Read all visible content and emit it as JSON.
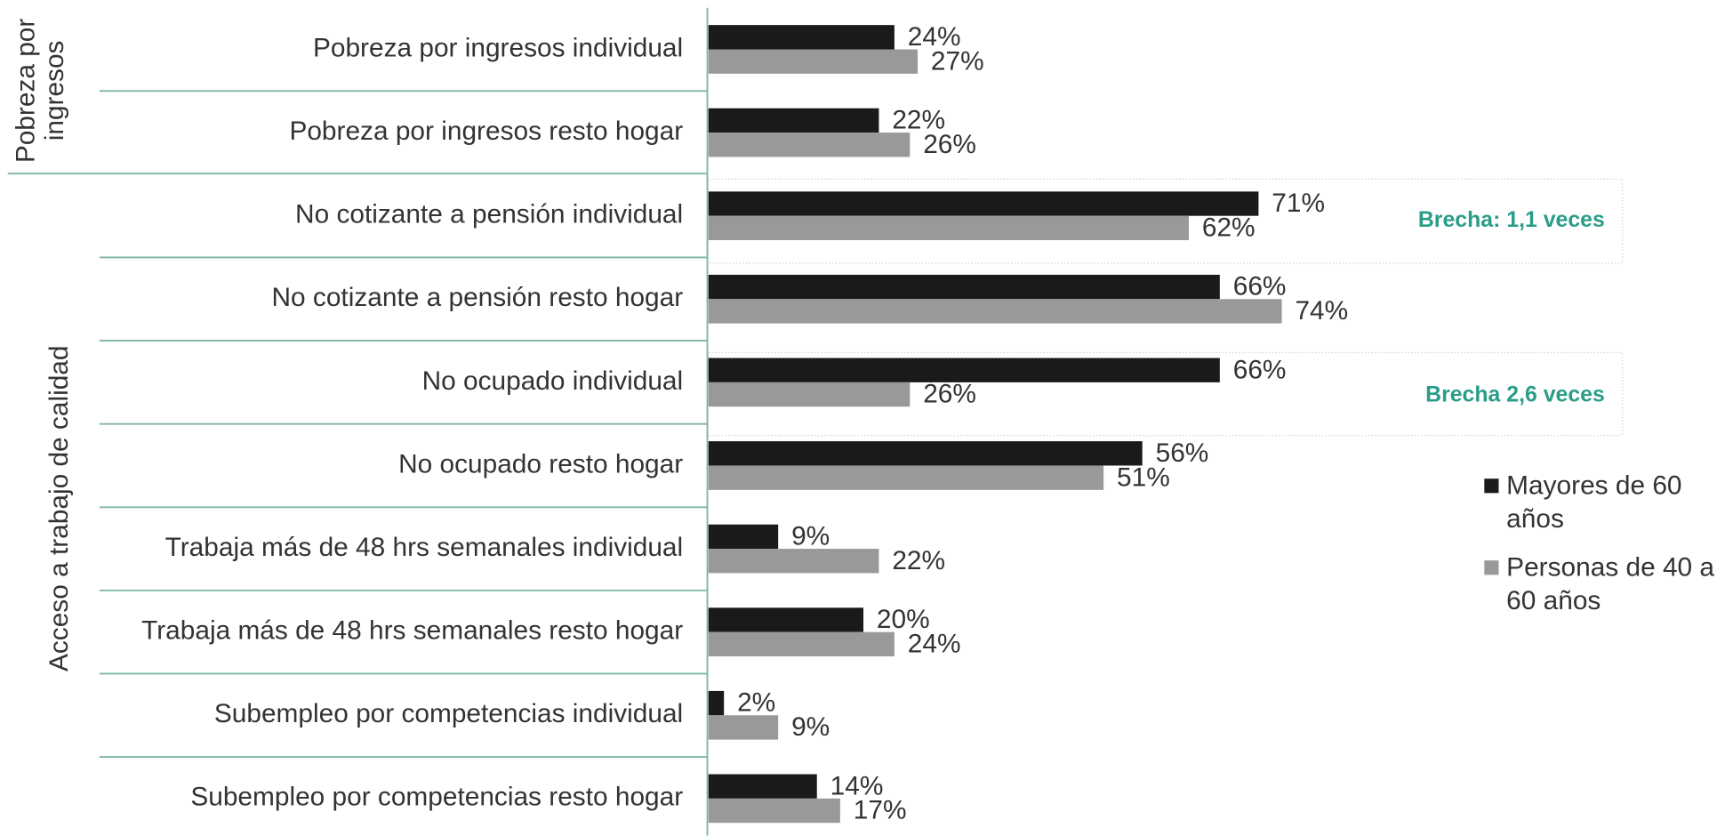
{
  "chart_data": {
    "type": "barh",
    "categories": [
      "Pobreza por ingresos individual",
      "Pobreza por ingresos resto hogar",
      "No cotizante a pensión individual",
      "No cotizante a pensión resto hogar",
      "No ocupado individual",
      "No ocupado resto hogar",
      "Trabaja más de 48 hrs semanales individual",
      "Trabaja más de 48 hrs semanales resto hogar",
      "Subempleo por competencias individual",
      "Subempleo por competencias resto hogar"
    ],
    "groups": [
      "Pobreza por ingresos",
      "Acceso a trabajo de calidad"
    ],
    "series": [
      {
        "name": "Mayores de 60 años",
        "color": "#1a1a1a",
        "values": [
          24,
          22,
          71,
          66,
          66,
          56,
          9,
          20,
          2,
          14
        ],
        "value_labels": [
          "24%",
          "22%",
          "71%",
          "66%",
          "66%",
          "56%",
          "9%",
          "20%",
          "2%",
          "14%"
        ]
      },
      {
        "name": "Personas de 40 a 60 años",
        "color": "#999999",
        "values": [
          27,
          26,
          62,
          74,
          26,
          51,
          22,
          24,
          9,
          17
        ],
        "value_labels": [
          "27%",
          "26%",
          "62%",
          "74%",
          "26%",
          "51%",
          "22%",
          "24%",
          "9%",
          "17%"
        ]
      }
    ],
    "annotations": [
      "Brecha: 1,1 veces",
      "Brecha 2,6 veces"
    ],
    "xlim": [
      0,
      100
    ]
  }
}
